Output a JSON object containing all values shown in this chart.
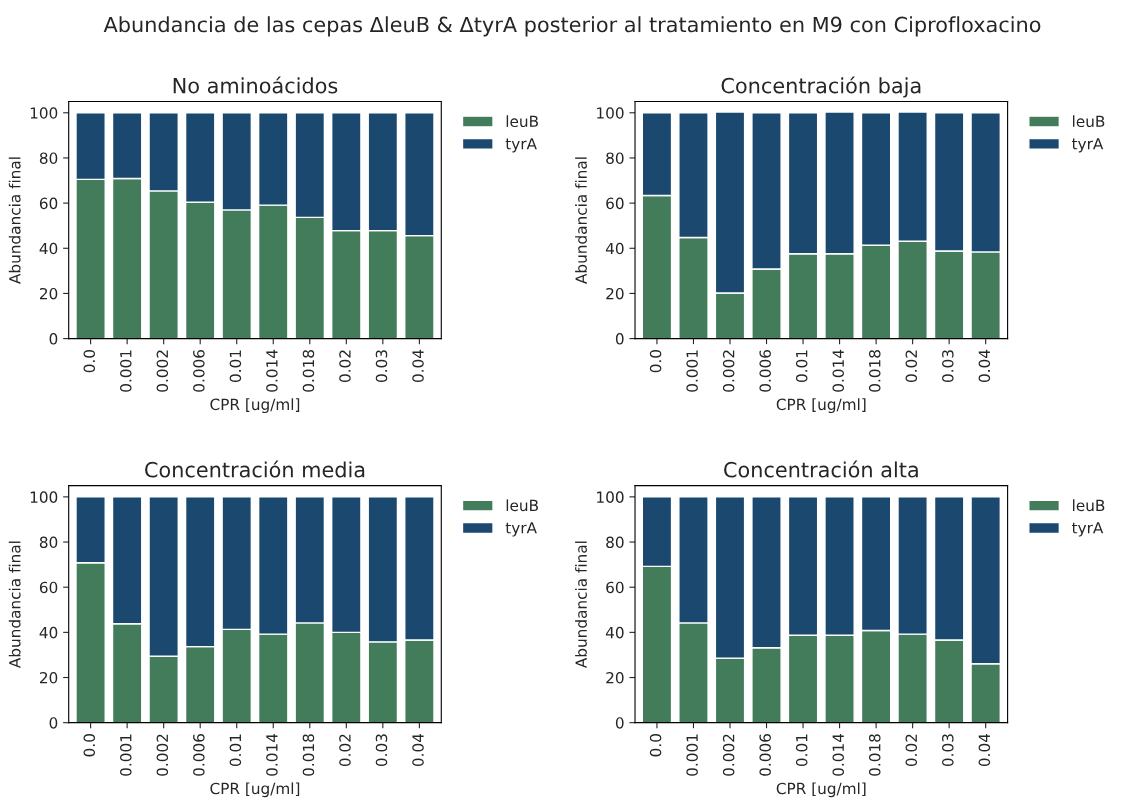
{
  "chart_data": [
    {
      "type": "bar",
      "stacked": true,
      "title": "No aminoácidos",
      "annotations": [
        "Abundancia de las cepas ΔleuB & ΔtyrA posterior al tratamiento en M9 con Ciprofloxacino"
      ],
      "xlabel": "CPR [ug/ml]",
      "ylabel": "Abundancia final",
      "categories": [
        "0.0",
        "0.001",
        "0.002",
        "0.006",
        "0.01",
        "0.014",
        "0.018",
        "0.02",
        "0.03",
        "0.04"
      ],
      "ylim": [
        0,
        105
      ],
      "yticks": [
        0,
        20,
        40,
        60,
        80,
        100
      ],
      "legend": "top right",
      "grid": false,
      "series": [
        {
          "name": "leuB",
          "color": "#437c5b",
          "values": [
            70.5,
            70.9,
            65.4,
            60.4,
            57.0,
            59.1,
            53.7,
            47.8,
            47.8,
            45.6
          ]
        },
        {
          "name": "tyrA",
          "color": "#1b486f",
          "values": [
            29.5,
            29.1,
            34.6,
            39.6,
            43.0,
            40.9,
            46.3,
            52.2,
            52.2,
            54.4
          ]
        }
      ]
    },
    {
      "type": "bar",
      "stacked": true,
      "title": "Concentración baja",
      "xlabel": "CPR [ug/ml]",
      "ylabel": "Abundancia final",
      "categories": [
        "0.0",
        "0.001",
        "0.002",
        "0.006",
        "0.01",
        "0.014",
        "0.018",
        "0.02",
        "0.03",
        "0.04"
      ],
      "ylim": [
        0,
        105
      ],
      "yticks": [
        0,
        20,
        40,
        60,
        80,
        100
      ],
      "legend": "top right",
      "grid": false,
      "series": [
        {
          "name": "leuB",
          "color": "#437c5b",
          "values": [
            63.4,
            44.8,
            20.2,
            30.8,
            37.6,
            37.6,
            41.4,
            43.1,
            38.8,
            38.4
          ]
        },
        {
          "name": "tyrA",
          "color": "#1b486f",
          "values": [
            36.6,
            55.2,
            80.1,
            69.2,
            62.4,
            62.7,
            58.6,
            57.2,
            61.2,
            61.6
          ]
        }
      ]
    },
    {
      "type": "bar",
      "stacked": true,
      "title": "Concentración media",
      "xlabel": "CPR [ug/ml]",
      "ylabel": "Abundancia final",
      "categories": [
        "0.0",
        "0.001",
        "0.002",
        "0.006",
        "0.01",
        "0.014",
        "0.018",
        "0.02",
        "0.03",
        "0.04"
      ],
      "ylim": [
        0,
        105
      ],
      "yticks": [
        0,
        20,
        40,
        60,
        80,
        100
      ],
      "legend": "top right",
      "grid": false,
      "series": [
        {
          "name": "leuB",
          "color": "#437c5b",
          "values": [
            70.8,
            43.8,
            29.4,
            33.7,
            41.3,
            39.2,
            44.2,
            40.0,
            35.8,
            36.6
          ]
        },
        {
          "name": "tyrA",
          "color": "#1b486f",
          "values": [
            29.2,
            56.2,
            70.6,
            66.3,
            58.7,
            60.8,
            55.8,
            60.0,
            64.2,
            63.4
          ]
        }
      ]
    },
    {
      "type": "bar",
      "stacked": true,
      "title": "Concentración alta",
      "xlabel": "CPR [ug/ml]",
      "ylabel": "Abundancia final",
      "categories": [
        "0.0",
        "0.001",
        "0.002",
        "0.006",
        "0.01",
        "0.014",
        "0.018",
        "0.02",
        "0.03",
        "0.04"
      ],
      "ylim": [
        0,
        105
      ],
      "yticks": [
        0,
        20,
        40,
        60,
        80,
        100
      ],
      "legend": "top right",
      "grid": false,
      "series": [
        {
          "name": "leuB",
          "color": "#437c5b",
          "values": [
            69.2,
            44.2,
            28.6,
            33.2,
            38.7,
            38.7,
            40.8,
            39.2,
            36.6,
            26.1
          ]
        },
        {
          "name": "tyrA",
          "color": "#1b486f",
          "values": [
            30.8,
            55.8,
            71.4,
            66.8,
            61.3,
            61.3,
            59.2,
            60.8,
            63.4,
            73.9
          ]
        }
      ]
    }
  ]
}
